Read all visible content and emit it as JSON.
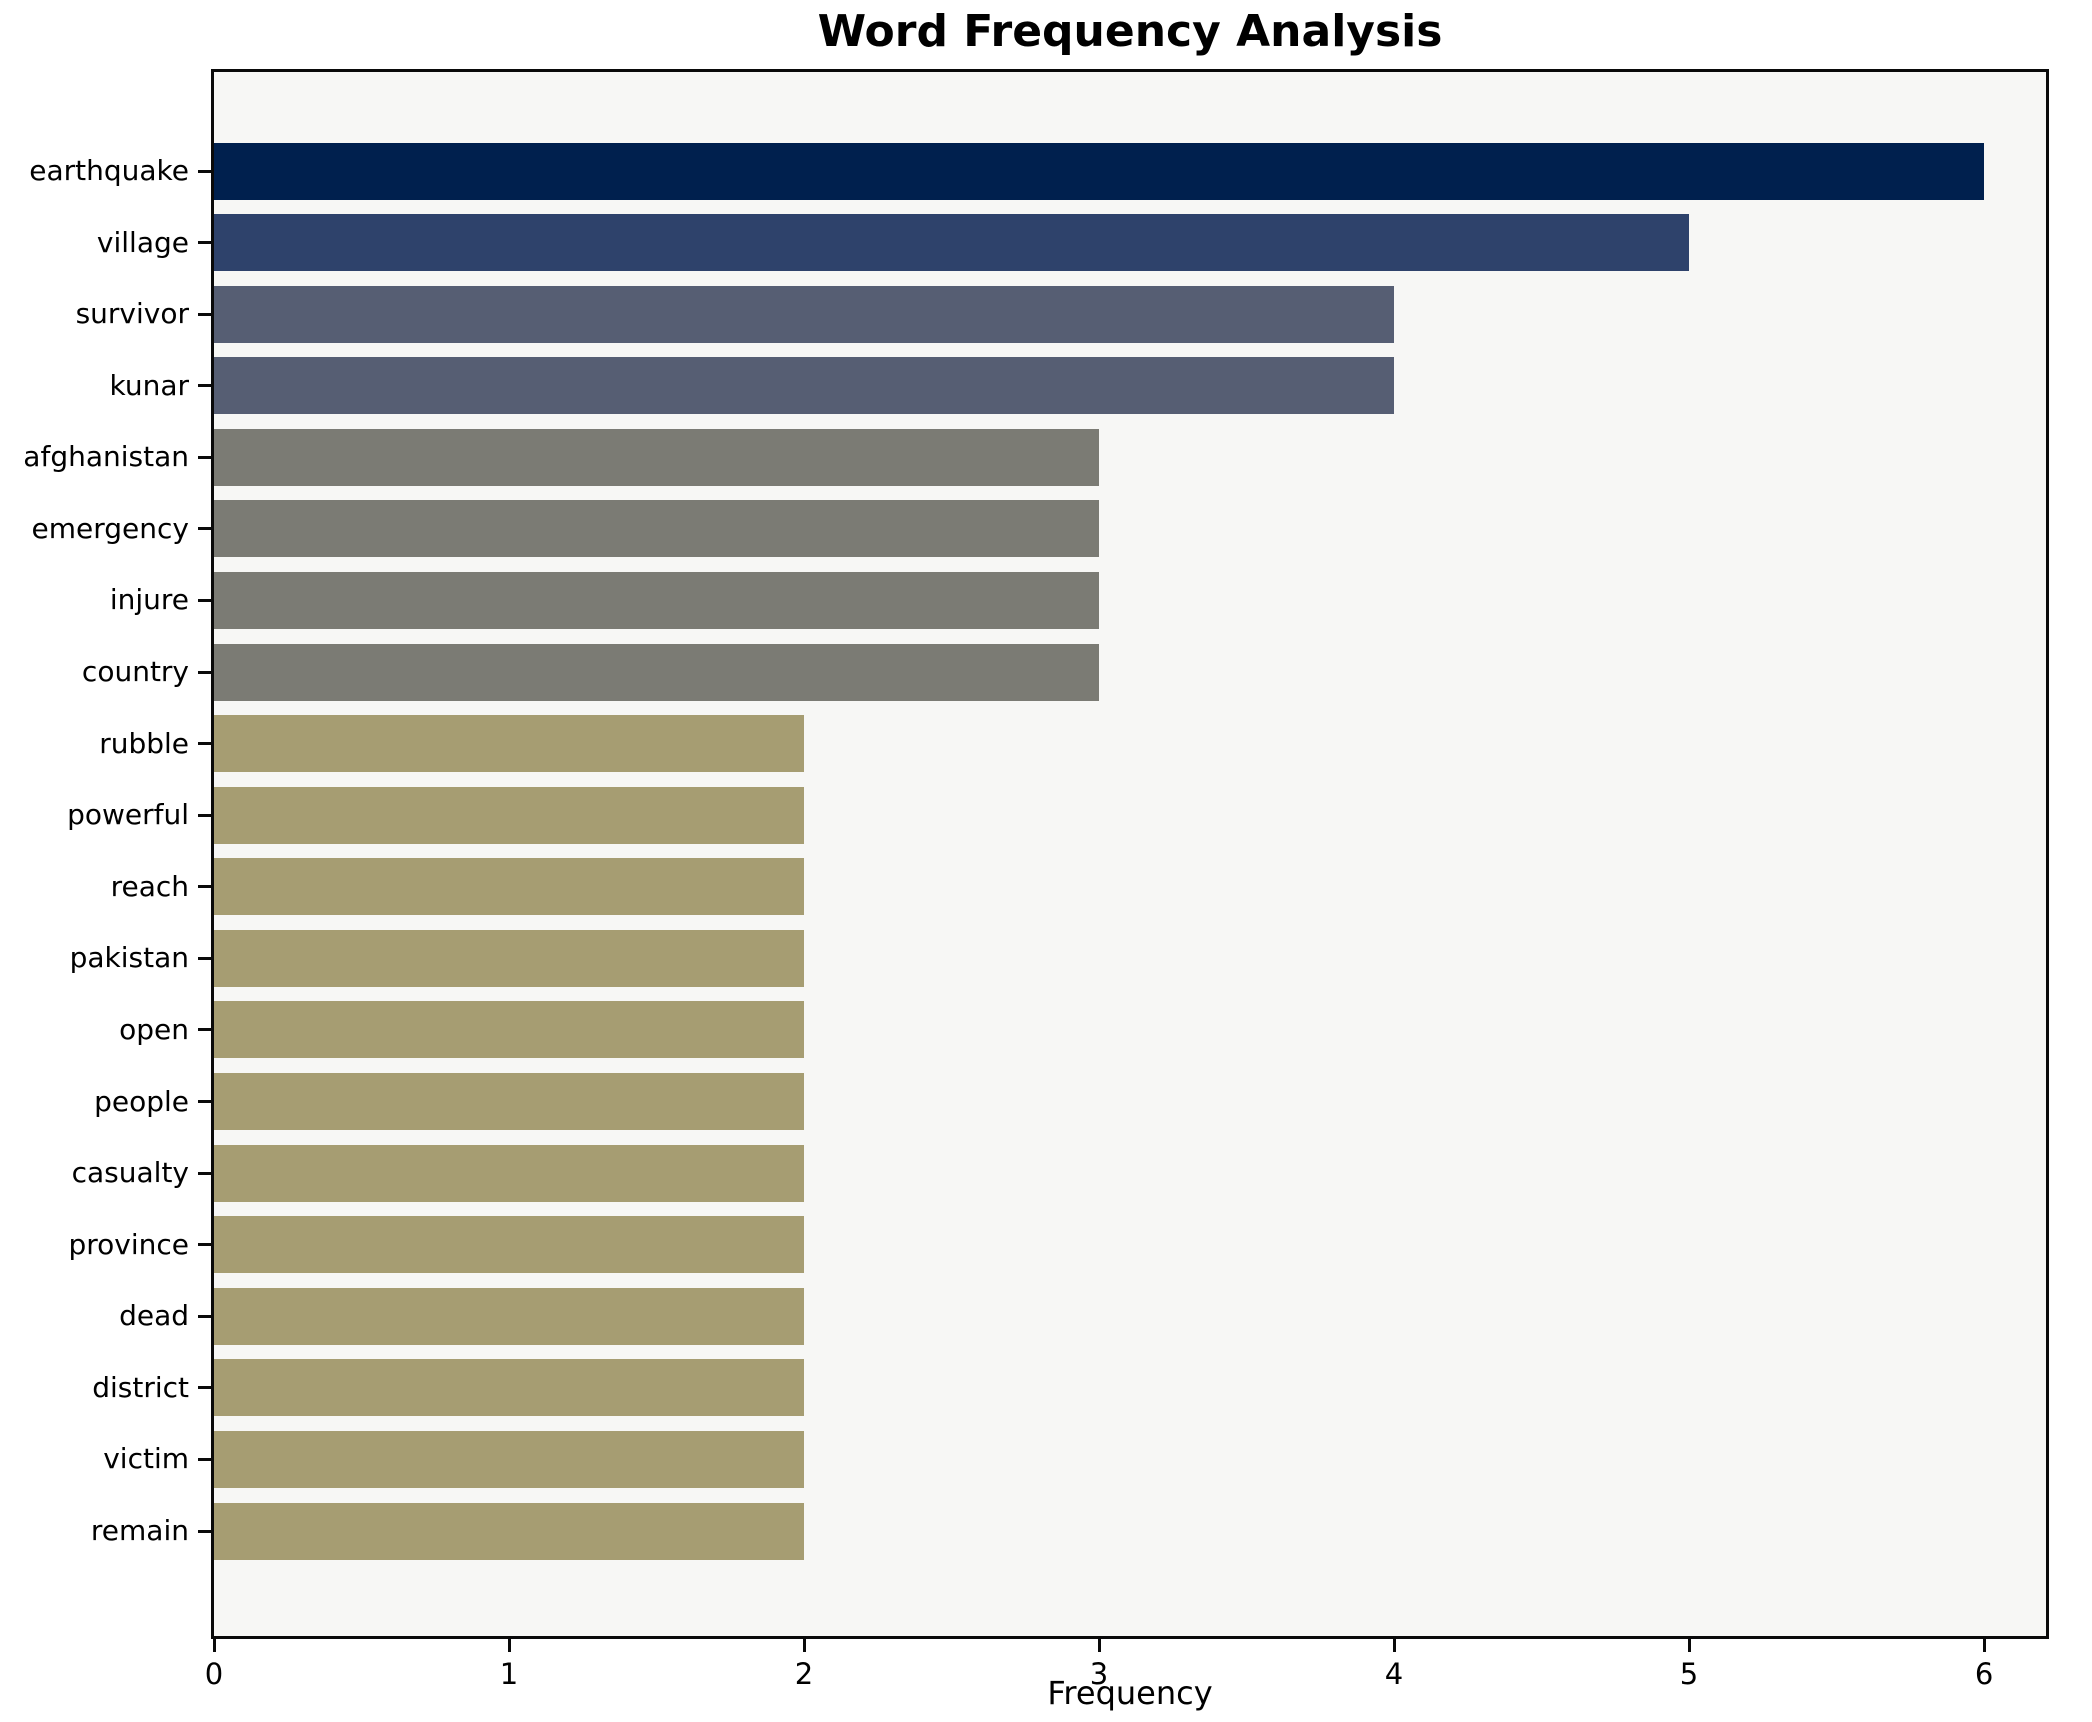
{
  "chart_data": {
    "type": "bar",
    "orientation": "horizontal",
    "title": "Word Frequency Analysis",
    "xlabel": "Frequency",
    "ylabel": "",
    "categories": [
      "earthquake",
      "village",
      "survivor",
      "kunar",
      "afghanistan",
      "emergency",
      "injure",
      "country",
      "rubble",
      "powerful",
      "reach",
      "pakistan",
      "open",
      "people",
      "casualty",
      "province",
      "dead",
      "district",
      "victim",
      "remain"
    ],
    "values": [
      6,
      5,
      4,
      4,
      3,
      3,
      3,
      3,
      2,
      2,
      2,
      2,
      2,
      2,
      2,
      2,
      2,
      2,
      2,
      2
    ],
    "bar_colors": [
      "#00204e",
      "#2e426b",
      "#565e73",
      "#565e73",
      "#7b7b74",
      "#7b7b74",
      "#7b7b74",
      "#7b7b74",
      "#a69d72",
      "#a69d72",
      "#a69d72",
      "#a69d72",
      "#a69d72",
      "#a69d72",
      "#a69d72",
      "#a69d72",
      "#a69d72",
      "#a69d72",
      "#a69d72",
      "#a69d72"
    ],
    "xticks": [
      "0",
      "1",
      "2",
      "3",
      "4",
      "5",
      "6"
    ],
    "xlim": [
      0,
      6.21
    ],
    "grid": false,
    "legend_position": "none",
    "plot_bg_color": "#f7f7f5",
    "fig_bg_color": "#ffffff",
    "spine_color": "#0a0a0a",
    "text_color": "#000000"
  }
}
